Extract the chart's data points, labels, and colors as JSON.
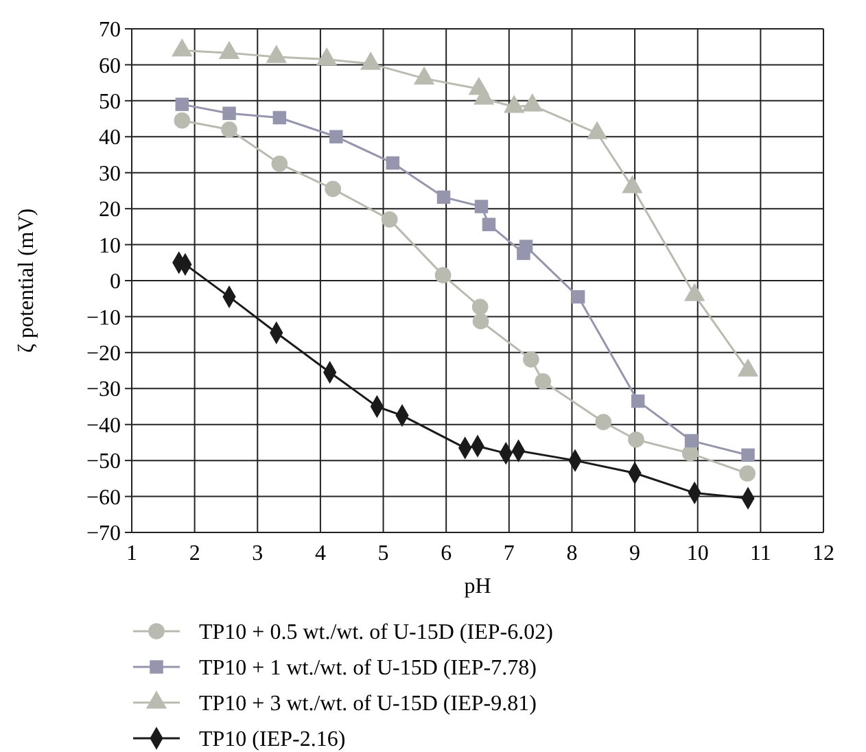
{
  "chart_data": {
    "type": "line",
    "xlabel": "pH",
    "ylabel": "ζ potential (mV)",
    "xlim": [
      1,
      12
    ],
    "xticks": [
      1,
      2,
      3,
      4,
      5,
      6,
      7,
      8,
      9,
      10,
      11,
      12
    ],
    "ylim": [
      -70,
      70
    ],
    "yticks": [
      -70,
      -60,
      -50,
      -40,
      -30,
      -20,
      -10,
      0,
      10,
      20,
      30,
      40,
      50,
      60,
      70
    ],
    "grid": true,
    "legend": "bottom",
    "line_style": "solid",
    "series": [
      {
        "name": "TP10 + 0.5 wt./wt. of U-15D (IEP-6.02)",
        "color": "#b9bbb0",
        "marker": "circle",
        "x": [
          1.8,
          2.55,
          3.35,
          4.2,
          5.1,
          5.95,
          6.54,
          6.55,
          7.35,
          7.54,
          8.5,
          9.02,
          9.88,
          10.79
        ],
        "values": [
          44.5,
          42,
          32.5,
          25.5,
          17,
          1.5,
          -7.3,
          -11.3,
          -21.9,
          -28,
          -39.3,
          -44.2,
          -48,
          -53.6
        ]
      },
      {
        "name": "TP10 + 1 wt./wt. of U-15D (IEP-7.78)",
        "color": "#9596ae",
        "marker": "square",
        "x": [
          1.8,
          2.55,
          3.35,
          4.25,
          5.15,
          5.96,
          6.56,
          6.68,
          7.23,
          7.27,
          8.1,
          9.05,
          9.9,
          10.8
        ],
        "values": [
          49,
          46.5,
          45.3,
          40,
          32.7,
          23.2,
          20.6,
          15.6,
          7.6,
          9.5,
          -4.5,
          -33.5,
          -44.5,
          -48.5
        ]
      },
      {
        "name": "TP10 + 3 wt./wt. of U-15D (IEP-9.81)",
        "color": "#b9bbb0",
        "marker": "triangle",
        "x": [
          1.8,
          2.55,
          3.3,
          4.1,
          4.8,
          5.65,
          6.52,
          6.6,
          7.08,
          7.37,
          8.4,
          8.96,
          9.95,
          10.8
        ],
        "values": [
          64,
          63.3,
          62.2,
          61.5,
          60.3,
          56.2,
          53.3,
          50.6,
          48.3,
          48.7,
          41,
          26,
          -4,
          -25
        ]
      },
      {
        "name": "TP10 (IEP-2.16)",
        "color": "#1a1a1a",
        "marker": "diamond",
        "x": [
          1.75,
          1.85,
          2.55,
          3.3,
          4.15,
          4.9,
          5.3,
          6.3,
          6.5,
          6.95,
          7.15,
          8.05,
          9.0,
          9.95,
          10.8
        ],
        "values": [
          5,
          4.5,
          -4.5,
          -14.5,
          -25.5,
          -35,
          -37.5,
          -46.5,
          -46,
          -48,
          -47.3,
          -50,
          -53.5,
          -59,
          -60.5
        ]
      }
    ]
  }
}
